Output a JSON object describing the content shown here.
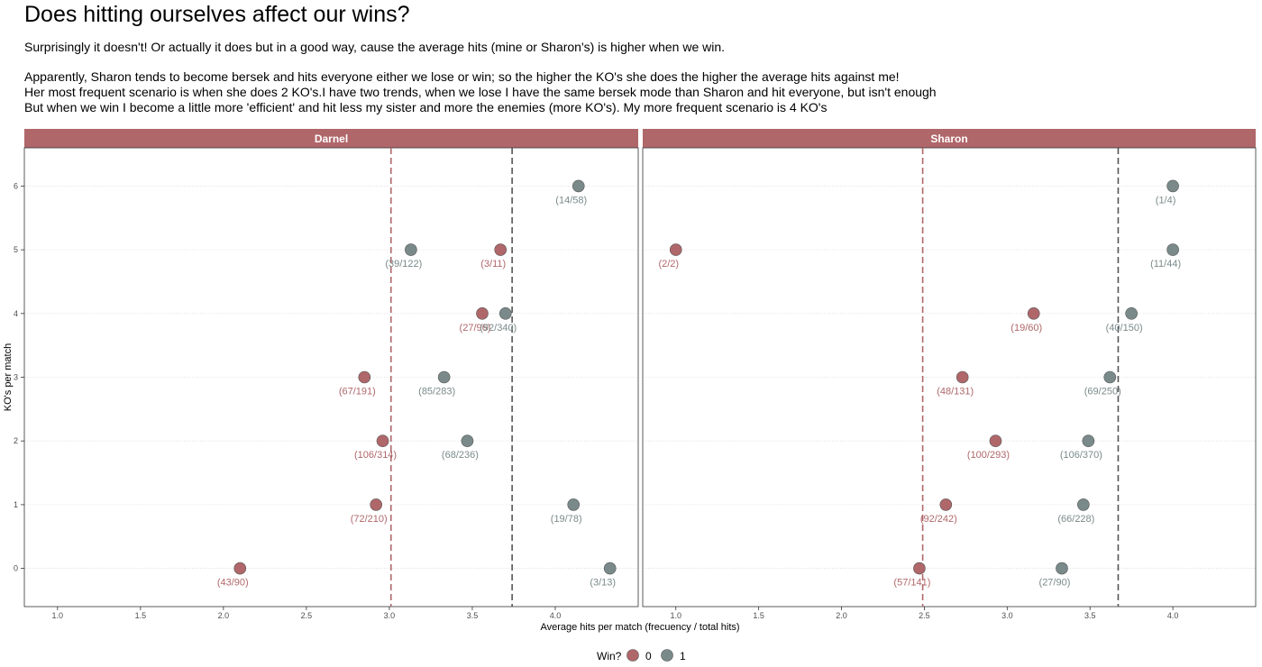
{
  "title": "Does hitting ourselves affect our wins?",
  "subtitle": [
    "Surprisingly it doesn't! Or actually it does but in a good way, cause the average hits (mine or Sharon's) is higher when we win.",
    "Apparently, Sharon tends to become bersek and hits everyone either we lose or win; so the higher the KO's she does the higher the average hits against me!",
    "Her most frequent scenario is when she does 2 KO's.I have two trends, when we lose I have the same bersek mode than Sharon and hit everyone, but isn't enough",
    "But when we win I become a little more 'efficient' and hit less my sister and more the enemies (more KO's). My more frequent scenario is 4 KO's"
  ],
  "colors": {
    "loss": "#b0676a",
    "win": "#7a8a8a",
    "strip": "#b0676a"
  },
  "chart_data": {
    "type": "scatter",
    "xlabel": "Average hits per match (frecuency / total hits)",
    "ylabel": "KO's per match",
    "xlim": [
      0.8,
      4.5
    ],
    "ylim": [
      -0.6,
      6.6
    ],
    "x_ticks": [
      "1.0",
      "1.5",
      "2.0",
      "2.5",
      "3.0",
      "3.5",
      "4.0"
    ],
    "y_ticks": [
      "0",
      "1",
      "2",
      "3",
      "4",
      "5",
      "6"
    ],
    "grid": "horizontal major",
    "legend": {
      "title": "Win?",
      "position": "bottom",
      "entries": [
        "0",
        "1"
      ]
    },
    "panels": [
      {
        "name": "Darnel",
        "vlines": [
          {
            "win": "0",
            "x": 3.01
          },
          {
            "win": "1",
            "x": 3.74
          }
        ],
        "points": [
          {
            "win": "0",
            "ko": 0,
            "x": 2.1,
            "label": "(43/90)"
          },
          {
            "win": "0",
            "ko": 1,
            "x": 2.92,
            "label": "(72/210)"
          },
          {
            "win": "0",
            "ko": 2,
            "x": 2.96,
            "label": "(106/314)"
          },
          {
            "win": "0",
            "ko": 3,
            "x": 2.85,
            "label": "(67/191)"
          },
          {
            "win": "0",
            "ko": 4,
            "x": 3.56,
            "label": "(27/96)"
          },
          {
            "win": "0",
            "ko": 5,
            "x": 3.67,
            "label": "(3/11)"
          },
          {
            "win": "1",
            "ko": 0,
            "x": 4.33,
            "label": "(3/13)"
          },
          {
            "win": "1",
            "ko": 1,
            "x": 4.11,
            "label": "(19/78)"
          },
          {
            "win": "1",
            "ko": 2,
            "x": 3.47,
            "label": "(68/236)"
          },
          {
            "win": "1",
            "ko": 3,
            "x": 3.33,
            "label": "(85/283)"
          },
          {
            "win": "1",
            "ko": 4,
            "x": 3.7,
            "label": "(92/340)"
          },
          {
            "win": "1",
            "ko": 5,
            "x": 3.13,
            "label": "(39/122)"
          },
          {
            "win": "1",
            "ko": 6,
            "x": 4.14,
            "label": "(14/58)"
          }
        ]
      },
      {
        "name": "Sharon",
        "vlines": [
          {
            "win": "0",
            "x": 2.49
          },
          {
            "win": "1",
            "x": 3.67
          }
        ],
        "points": [
          {
            "win": "0",
            "ko": 0,
            "x": 2.47,
            "label": "(57/141)"
          },
          {
            "win": "0",
            "ko": 1,
            "x": 2.63,
            "label": "(92/242)"
          },
          {
            "win": "0",
            "ko": 2,
            "x": 2.93,
            "label": "(100/293)"
          },
          {
            "win": "0",
            "ko": 3,
            "x": 2.73,
            "label": "(48/131)"
          },
          {
            "win": "0",
            "ko": 4,
            "x": 3.16,
            "label": "(19/60)"
          },
          {
            "win": "0",
            "ko": 5,
            "x": 1.0,
            "label": "(2/2)"
          },
          {
            "win": "1",
            "ko": 0,
            "x": 3.33,
            "label": "(27/90)"
          },
          {
            "win": "1",
            "ko": 1,
            "x": 3.46,
            "label": "(66/228)"
          },
          {
            "win": "1",
            "ko": 2,
            "x": 3.49,
            "label": "(106/370)"
          },
          {
            "win": "1",
            "ko": 3,
            "x": 3.62,
            "label": "(69/250)"
          },
          {
            "win": "1",
            "ko": 4,
            "x": 3.75,
            "label": "(40/150)"
          },
          {
            "win": "1",
            "ko": 5,
            "x": 4.0,
            "label": "(11/44)"
          },
          {
            "win": "1",
            "ko": 6,
            "x": 4.0,
            "label": "(1/4)"
          }
        ]
      }
    ]
  }
}
